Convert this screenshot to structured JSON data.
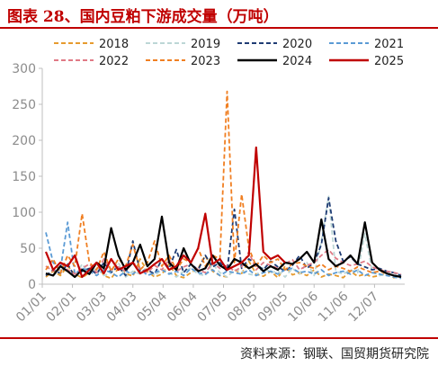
{
  "header": {
    "title": "图表 28、国内豆粕下游成交量（万吨）"
  },
  "footer": {
    "source": "资料来源：钢联、国贸期货研究院"
  },
  "chart_data": {
    "type": "line",
    "title": "图表 28、国内豆粕下游成交量（万吨）",
    "xlabel": "",
    "ylabel": "",
    "ylim": [
      0,
      300
    ],
    "yticks": [
      0,
      50,
      100,
      150,
      200,
      250,
      300
    ],
    "xticks": [
      "01/01",
      "02/01",
      "03/03",
      "04/03",
      "05/04",
      "06/04",
      "07/05",
      "08/05",
      "09/05",
      "10/06",
      "11/06",
      "12/07"
    ],
    "grid": false,
    "legend_position": "top",
    "series": [
      {
        "name": "2018",
        "color": "#e69b2e",
        "dash": "dash",
        "values": [
          10,
          18,
          12,
          25,
          14,
          9,
          16,
          30,
          12,
          8,
          22,
          15,
          11,
          35,
          18,
          10,
          14,
          28,
          12,
          9,
          16,
          22,
          40,
          18,
          12,
          10,
          20,
          15,
          32,
          14,
          11,
          18,
          9,
          25,
          13,
          16,
          12,
          20,
          10,
          14,
          12,
          9,
          18,
          11,
          14,
          10,
          12,
          15,
          9,
          11
        ]
      },
      {
        "name": "2019",
        "color": "#bdd7d6",
        "dash": "dash",
        "values": [
          15,
          12,
          20,
          18,
          10,
          28,
          14,
          22,
          12,
          16,
          30,
          10,
          18,
          14,
          25,
          12,
          20,
          16,
          10,
          18,
          22,
          14,
          12,
          28,
          16,
          10,
          20,
          18,
          14,
          12,
          24,
          16,
          18,
          10,
          22,
          14,
          30,
          12,
          60,
          122,
          18,
          14,
          20,
          16,
          70,
          18,
          12,
          14,
          16,
          10
        ]
      },
      {
        "name": "2020",
        "color": "#1f3c74",
        "dash": "dash",
        "values": [
          12,
          20,
          15,
          28,
          10,
          18,
          22,
          14,
          30,
          16,
          25,
          12,
          60,
          18,
          20,
          14,
          35,
          22,
          48,
          16,
          28,
          20,
          40,
          24,
          30,
          18,
          104,
          22,
          35,
          28,
          20,
          32,
          24,
          18,
          26,
          40,
          22,
          30,
          55,
          120,
          60,
          32,
          38,
          28,
          24,
          20,
          22,
          18,
          16,
          12
        ]
      },
      {
        "name": "2021",
        "color": "#5b9bd5",
        "dash": "dash",
        "values": [
          72,
          30,
          20,
          86,
          14,
          22,
          18,
          12,
          20,
          16,
          10,
          18,
          14,
          22,
          12,
          16,
          20,
          14,
          18,
          12,
          22,
          16,
          14,
          20,
          12,
          18,
          16,
          14,
          20,
          12,
          16,
          18,
          14,
          20,
          22,
          16,
          18,
          14,
          20,
          12,
          16,
          18,
          14,
          20,
          12,
          16,
          14,
          12,
          10,
          8
        ]
      },
      {
        "name": "2022",
        "color": "#e07a86",
        "dash": "dash",
        "values": [
          25,
          18,
          30,
          20,
          14,
          22,
          28,
          16,
          35,
          20,
          24,
          18,
          30,
          22,
          16,
          26,
          20,
          34,
          18,
          24,
          28,
          20,
          16,
          30,
          22,
          26,
          18,
          24,
          45,
          20,
          30,
          26,
          22,
          28,
          34,
          20,
          26,
          30,
          40,
          48,
          36,
          30,
          26,
          28,
          32,
          24,
          20,
          18,
          16,
          14
        ]
      },
      {
        "name": "2023",
        "color": "#f07f22",
        "dash": "dash",
        "values": [
          20,
          35,
          15,
          40,
          25,
          98,
          30,
          20,
          45,
          18,
          35,
          25,
          55,
          20,
          30,
          60,
          25,
          40,
          20,
          35,
          30,
          50,
          25,
          40,
          35,
          268,
          30,
          125,
          50,
          25,
          40,
          30,
          35,
          20,
          28,
          30,
          25,
          22,
          28,
          20,
          25,
          22,
          18,
          24,
          20,
          16,
          18,
          15,
          12,
          10
        ]
      },
      {
        "name": "2024",
        "color": "#000000",
        "dash": "solid",
        "values": [
          15,
          12,
          25,
          18,
          10,
          20,
          14,
          30,
          22,
          78,
          40,
          20,
          30,
          55,
          25,
          35,
          94,
          30,
          20,
          50,
          28,
          18,
          22,
          40,
          26,
          20,
          35,
          30,
          22,
          28,
          18,
          25,
          20,
          30,
          28,
          35,
          45,
          30,
          90,
          35,
          25,
          30,
          40,
          28,
          86,
          30,
          20,
          15,
          12,
          10
        ]
      },
      {
        "name": "2025",
        "color": "#c00000",
        "dash": "solid",
        "values": [
          45,
          20,
          30,
          25,
          40,
          10,
          20,
          30,
          15,
          35,
          20,
          25,
          30,
          15,
          20,
          28,
          35,
          20,
          25,
          40,
          30,
          50,
          98,
          28,
          35,
          20,
          25,
          30,
          40,
          190,
          45,
          35,
          40,
          30,
          null,
          null,
          null,
          null,
          null,
          null,
          null,
          null,
          null,
          null,
          null,
          null,
          null,
          null,
          null,
          null
        ]
      }
    ]
  }
}
